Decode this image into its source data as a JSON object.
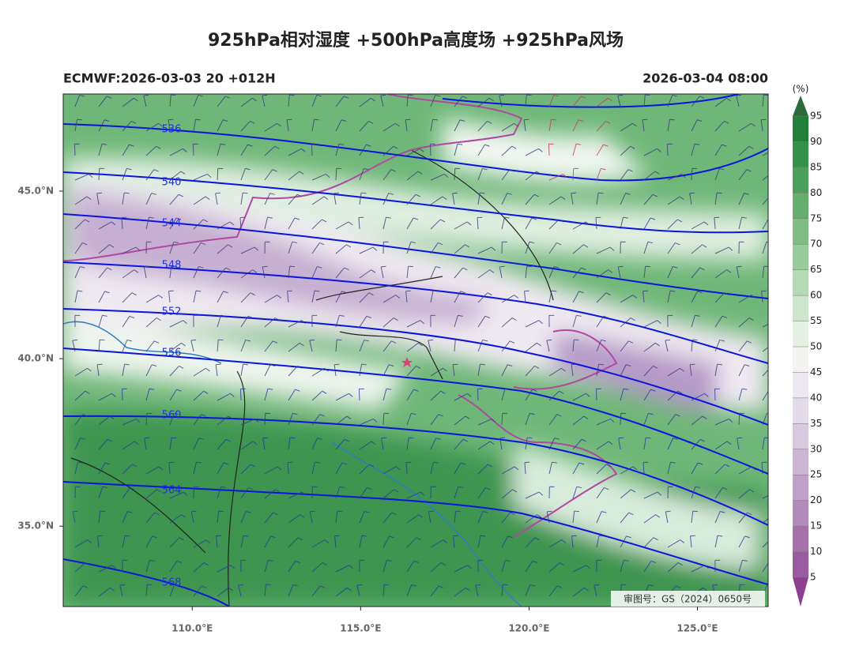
{
  "map": {
    "title": "925hPa相对湿度 +500hPa高度场 +925hPa风场",
    "init_label": "ECMWF:2026-03-03 20 +012H",
    "valid_label": "2026-03-04 08:00",
    "lon_range": [
      106.17,
      127.1
    ],
    "lat_range": [
      32.6,
      47.9
    ],
    "lon_ticks": [
      {
        "value": 110,
        "label": "110.0°E"
      },
      {
        "value": 115,
        "label": "115.0°E"
      },
      {
        "value": 120,
        "label": "120.0°E"
      },
      {
        "value": 125,
        "label": "125.0°E"
      }
    ],
    "lat_ticks": [
      {
        "value": 35,
        "label": "35.0°N"
      },
      {
        "value": 40,
        "label": "40.0°N"
      },
      {
        "value": 45,
        "label": "45.0°N"
      }
    ],
    "contours": [
      536,
      540,
      544,
      548,
      552,
      556,
      560,
      564,
      568
    ],
    "colorbar": {
      "unit": "(%)",
      "levels": [
        5,
        10,
        15,
        20,
        25,
        30,
        35,
        40,
        45,
        50,
        55,
        60,
        65,
        70,
        75,
        80,
        85,
        90,
        95
      ]
    },
    "approval": "审图号：GS（2024）0650号"
  }
}
